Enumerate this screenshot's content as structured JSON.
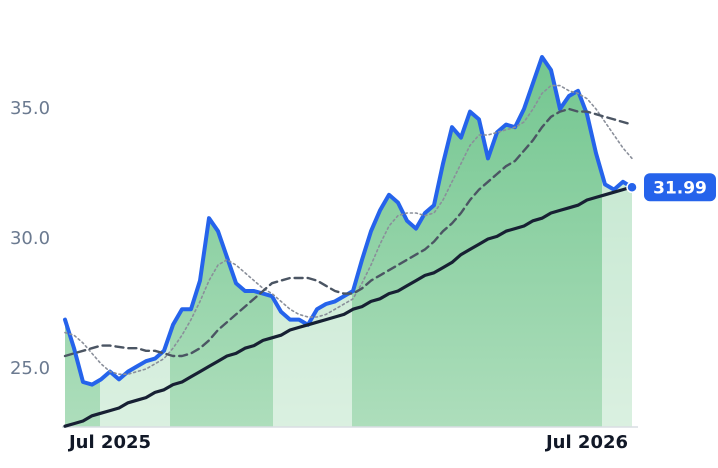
{
  "chart_data": {
    "type": "line",
    "categories": [
      null,
      null,
      null,
      null,
      null,
      "Jul 2025",
      null,
      null,
      null,
      null,
      null,
      null,
      null,
      null,
      null,
      null,
      null,
      null,
      null,
      null,
      null,
      null,
      null,
      null,
      null,
      null,
      null,
      null,
      null,
      null,
      null,
      null,
      null,
      null,
      null,
      null,
      null,
      null,
      null,
      null,
      null,
      null,
      null,
      null,
      null,
      null,
      null,
      null,
      null,
      null,
      null,
      null,
      null,
      null,
      null,
      null,
      null,
      null,
      "Jul 2026",
      null,
      null,
      null,
      null,
      null
    ],
    "ylim": [
      22.8,
      38.4
    ],
    "yticks": [
      {
        "value": 25,
        "label": "25.0"
      },
      {
        "value": 30,
        "label": "30.0"
      },
      {
        "value": 35,
        "label": "35.0"
      }
    ],
    "area_color": "#86cf9e",
    "series": [
      {
        "color": "#2563eb",
        "style": "solid",
        "width": 4,
        "area": true,
        "values": [
          26.9,
          25.8,
          24.5,
          24.4,
          24.6,
          24.9,
          24.6,
          24.9,
          25.1,
          25.3,
          25.4,
          25.7,
          26.7,
          27.3,
          27.3,
          28.4,
          30.8,
          30.3,
          29.3,
          28.3,
          28.0,
          28.0,
          27.9,
          27.8,
          27.2,
          26.9,
          26.9,
          26.7,
          27.3,
          27.5,
          27.6,
          27.8,
          28.0,
          29.2,
          30.3,
          31.1,
          31.7,
          31.4,
          30.7,
          30.4,
          31.0,
          31.3,
          32.9,
          34.3,
          33.9,
          34.9,
          34.6,
          33.1,
          34.1,
          34.4,
          34.3,
          35.0,
          36.0,
          37.0,
          36.5,
          35.0,
          35.5,
          35.7,
          34.8,
          33.3,
          32.1,
          31.9,
          32.2,
          31.99
        ],
        "value_labels": {
          "63": "31.99"
        }
      },
      {
        "color": "#8a8f9a",
        "style": "dotted",
        "width": 1.6,
        "values": [
          26.4,
          26.3,
          26.0,
          25.6,
          25.2,
          24.9,
          24.8,
          24.8,
          24.9,
          25.0,
          25.2,
          25.4,
          25.8,
          26.3,
          26.9,
          27.6,
          28.4,
          29.0,
          29.2,
          29.0,
          28.7,
          28.4,
          28.1,
          27.9,
          27.6,
          27.3,
          27.1,
          27.0,
          27.0,
          27.1,
          27.3,
          27.5,
          27.7,
          28.3,
          29.0,
          29.8,
          30.5,
          30.9,
          31.0,
          31.0,
          30.9,
          31.0,
          31.5,
          32.2,
          32.9,
          33.6,
          34.0,
          34.0,
          34.1,
          34.2,
          34.3,
          34.5,
          35.0,
          35.6,
          35.9,
          35.9,
          35.7,
          35.6,
          35.4,
          35.0,
          34.5,
          34.0,
          33.5,
          33.1
        ]
      },
      {
        "color": "#4b5563",
        "style": "dashed",
        "width": 2.4,
        "values": [
          25.5,
          25.6,
          25.7,
          25.8,
          25.9,
          25.9,
          25.85,
          25.8,
          25.8,
          25.7,
          25.7,
          25.6,
          25.5,
          25.5,
          25.6,
          25.8,
          26.1,
          26.5,
          26.8,
          27.1,
          27.4,
          27.7,
          28.0,
          28.3,
          28.4,
          28.5,
          28.5,
          28.5,
          28.4,
          28.2,
          28.0,
          27.9,
          27.9,
          28.1,
          28.4,
          28.6,
          28.8,
          29.0,
          29.2,
          29.4,
          29.6,
          29.9,
          30.3,
          30.6,
          31.0,
          31.5,
          31.9,
          32.2,
          32.5,
          32.8,
          33.0,
          33.4,
          33.8,
          34.3,
          34.7,
          34.9,
          35.0,
          34.9,
          34.9,
          34.8,
          34.7,
          34.6,
          34.5,
          34.4
        ]
      },
      {
        "color": "#172033",
        "style": "solid",
        "width": 3.2,
        "values": [
          22.8,
          22.9,
          23.0,
          23.2,
          23.3,
          23.4,
          23.5,
          23.7,
          23.8,
          23.9,
          24.1,
          24.2,
          24.4,
          24.5,
          24.7,
          24.9,
          25.1,
          25.3,
          25.5,
          25.6,
          25.8,
          25.9,
          26.1,
          26.2,
          26.3,
          26.5,
          26.6,
          26.7,
          26.8,
          26.9,
          27.0,
          27.1,
          27.3,
          27.4,
          27.6,
          27.7,
          27.9,
          28.0,
          28.2,
          28.4,
          28.6,
          28.7,
          28.9,
          29.1,
          29.4,
          29.6,
          29.8,
          30.0,
          30.1,
          30.3,
          30.4,
          30.5,
          30.7,
          30.8,
          31.0,
          31.1,
          31.2,
          31.3,
          31.5,
          31.6,
          31.7,
          31.8,
          31.9,
          32.0
        ]
      }
    ]
  }
}
